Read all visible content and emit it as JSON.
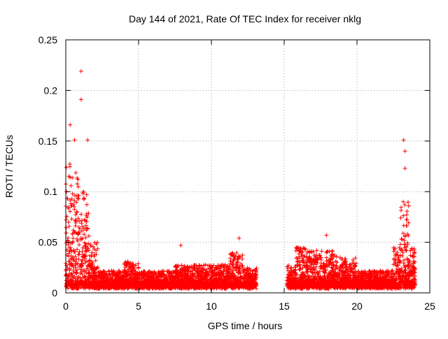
{
  "chart_data": {
    "type": "scatter",
    "title": "Day 144 of 2021, Rate Of TEC Index for receiver nklg",
    "xlabel": "GPS time / hours",
    "ylabel": "ROTI / TECUs",
    "xlim": [
      0,
      25
    ],
    "ylim": [
      0,
      0.25
    ],
    "x_ticks": [
      "0",
      "5",
      "10",
      "15",
      "20",
      "25"
    ],
    "y_ticks": [
      "0",
      "0.05",
      "0.1",
      "0.15",
      "0.2",
      "0.25"
    ],
    "grid": true,
    "marker": "+",
    "marker_color": "#ff0000",
    "data_gap_hours": [
      13.1,
      15.2
    ],
    "peaks": [
      {
        "x": 1.05,
        "y": 0.219
      },
      {
        "x": 1.05,
        "y": 0.191
      },
      {
        "x": 0.3,
        "y": 0.166
      },
      {
        "x": 0.6,
        "y": 0.151
      },
      {
        "x": 1.5,
        "y": 0.151
      },
      {
        "x": 7.9,
        "y": 0.047
      },
      {
        "x": 11.9,
        "y": 0.054
      },
      {
        "x": 17.9,
        "y": 0.057
      },
      {
        "x": 23.2,
        "y": 0.151
      },
      {
        "x": 23.3,
        "y": 0.14
      },
      {
        "x": 23.3,
        "y": 0.123
      }
    ],
    "envelope": [
      {
        "x_start": 0.0,
        "x_end": 0.5,
        "y_max": 0.13
      },
      {
        "x_start": 0.5,
        "x_end": 1.0,
        "y_max": 0.12
      },
      {
        "x_start": 1.0,
        "x_end": 1.6,
        "y_max": 0.1
      },
      {
        "x_start": 1.6,
        "x_end": 2.2,
        "y_max": 0.05
      },
      {
        "x_start": 2.2,
        "x_end": 4.0,
        "y_max": 0.022
      },
      {
        "x_start": 4.0,
        "x_end": 5.0,
        "y_max": 0.032
      },
      {
        "x_start": 5.0,
        "x_end": 7.5,
        "y_max": 0.022
      },
      {
        "x_start": 7.5,
        "x_end": 11.2,
        "y_max": 0.028
      },
      {
        "x_start": 11.2,
        "x_end": 12.2,
        "y_max": 0.04
      },
      {
        "x_start": 12.2,
        "x_end": 13.1,
        "y_max": 0.025
      },
      {
        "x_start": 15.2,
        "x_end": 15.8,
        "y_max": 0.028
      },
      {
        "x_start": 15.8,
        "x_end": 16.6,
        "y_max": 0.045
      },
      {
        "x_start": 16.6,
        "x_end": 18.6,
        "y_max": 0.042
      },
      {
        "x_start": 18.6,
        "x_end": 20.0,
        "y_max": 0.035
      },
      {
        "x_start": 20.0,
        "x_end": 22.5,
        "y_max": 0.022
      },
      {
        "x_start": 22.5,
        "x_end": 23.0,
        "y_max": 0.05
      },
      {
        "x_start": 23.0,
        "x_end": 23.6,
        "y_max": 0.09
      },
      {
        "x_start": 23.6,
        "x_end": 24.0,
        "y_max": 0.045
      }
    ]
  }
}
